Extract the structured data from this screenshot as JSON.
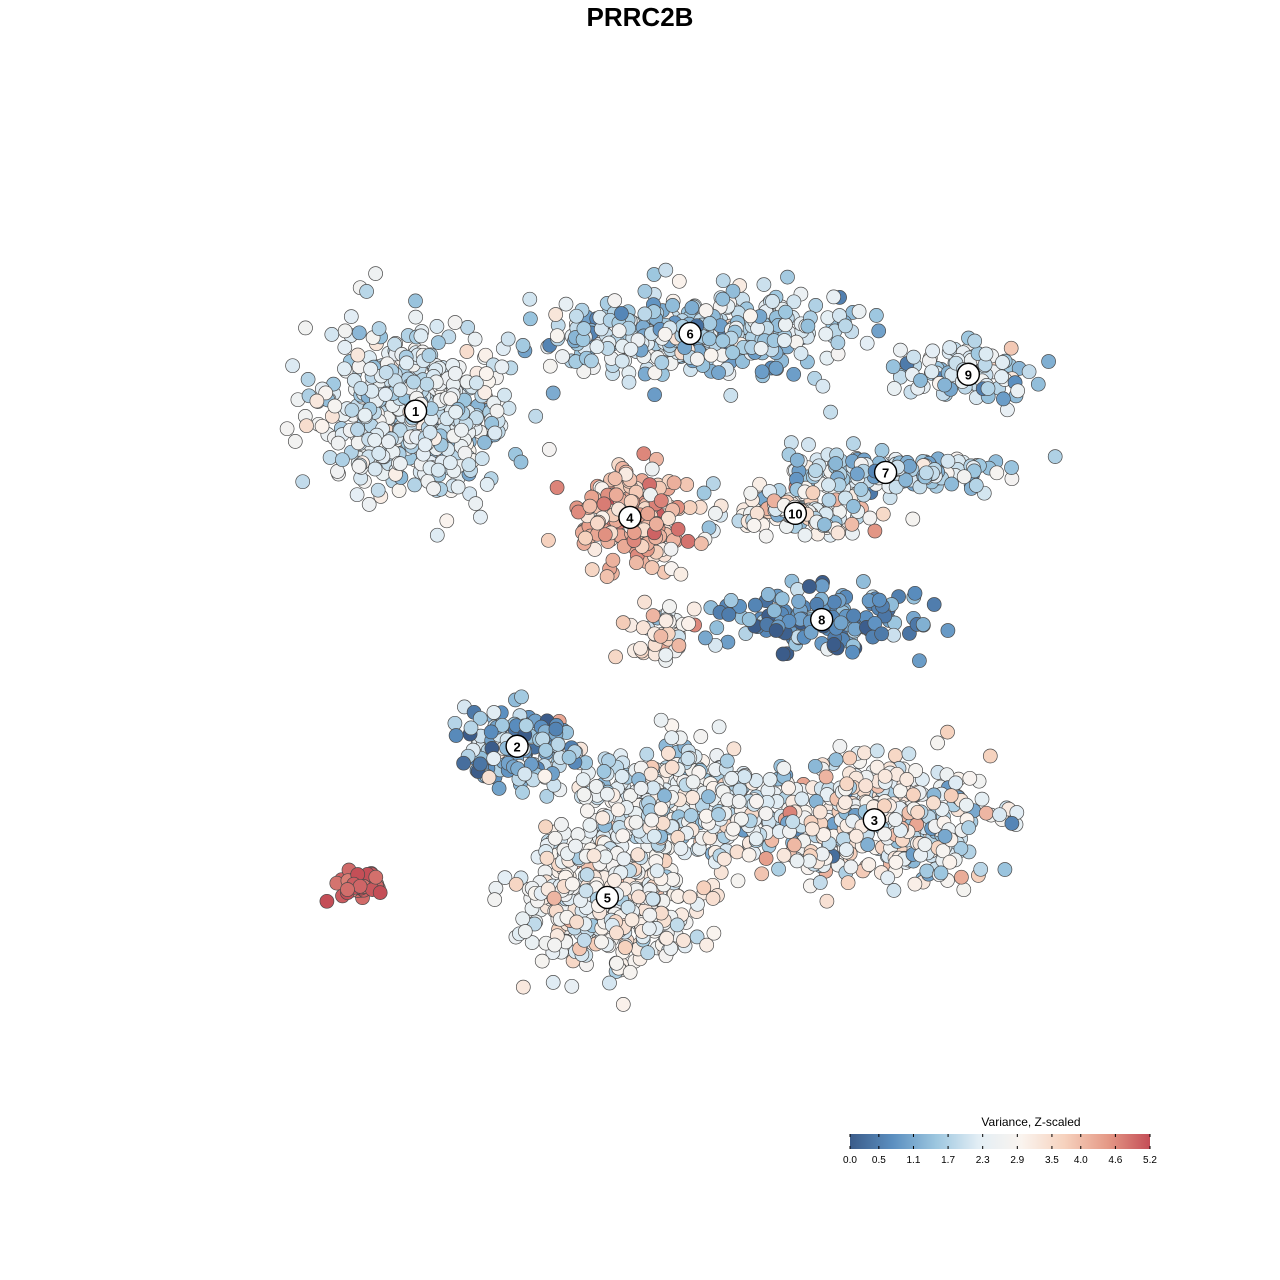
{
  "chart_data": {
    "type": "scatter",
    "title": "PRRC2B",
    "legend": {
      "title": "Variance, Z-scaled",
      "placement": "bottom-right",
      "ticks": [
        "0.0",
        "0.5",
        "1.1",
        "1.7",
        "2.3",
        "2.9",
        "3.5",
        "4.0",
        "4.6",
        "5.2"
      ],
      "range": [
        0.0,
        5.2
      ],
      "colors": [
        "#3b5c8a",
        "#5b8fc0",
        "#9cc6df",
        "#e3eef5",
        "#faf4ef",
        "#f6d2be",
        "#e59a87",
        "#c44e57"
      ]
    },
    "clusters": [
      {
        "label": "1",
        "x": -6.5,
        "y": 6.6,
        "spread_x": 2.2,
        "spread_y": 1.9,
        "n": 520,
        "mean_expression": 2.2,
        "color_sd": 0.5
      },
      {
        "label": "6",
        "x": 0.8,
        "y": 8.5,
        "spread_x": 3.5,
        "spread_y": 0.9,
        "n": 420,
        "mean_expression": 1.9,
        "color_sd": 0.6
      },
      {
        "label": "9",
        "x": 8.2,
        "y": 7.5,
        "spread_x": 1.7,
        "spread_y": 0.6,
        "n": 110,
        "mean_expression": 2.0,
        "color_sd": 0.6
      },
      {
        "label": "7",
        "x": 6.0,
        "y": 5.1,
        "spread_x": 2.6,
        "spread_y": 0.5,
        "n": 210,
        "mean_expression": 1.8,
        "color_sd": 0.6
      },
      {
        "label": "4",
        "x": -0.8,
        "y": 4.0,
        "spread_x": 1.3,
        "spread_y": 1.0,
        "n": 240,
        "mean_expression": 3.9,
        "color_sd": 0.6
      },
      {
        "label": "10",
        "x": 3.6,
        "y": 4.1,
        "spread_x": 1.8,
        "spread_y": 0.6,
        "n": 130,
        "mean_expression": 2.7,
        "color_sd": 0.7
      },
      {
        "label": "8",
        "x": 4.3,
        "y": 1.5,
        "spread_x": 2.4,
        "spread_y": 0.7,
        "n": 160,
        "mean_expression": 0.9,
        "color_sd": 0.6
      },
      {
        "label": "2",
        "x": -3.8,
        "y": -1.6,
        "spread_x": 1.4,
        "spread_y": 0.8,
        "n": 160,
        "mean_expression": 1.3,
        "color_sd": 0.8
      },
      {
        "label": "3",
        "x": 5.7,
        "y": -3.4,
        "spread_x": 2.8,
        "spread_y": 1.3,
        "n": 430,
        "mean_expression": 2.6,
        "color_sd": 0.8
      },
      {
        "label": "5",
        "x": -1.4,
        "y": -5.3,
        "spread_x": 2.0,
        "spread_y": 1.4,
        "n": 470,
        "mean_expression": 2.8,
        "color_sd": 0.5
      },
      {
        "label": "",
        "x": 0.5,
        "y": -3.0,
        "spread_x": 2.4,
        "spread_y": 1.2,
        "n": 380,
        "mean_expression": 2.4,
        "color_sd": 0.6
      },
      {
        "label": "",
        "x": -8.0,
        "y": -5.0,
        "spread_x": 0.6,
        "spread_y": 0.3,
        "n": 45,
        "mean_expression": 5.0,
        "color_sd": 0.25
      },
      {
        "label": "",
        "x": 0.0,
        "y": 1.2,
        "spread_x": 0.9,
        "spread_y": 0.7,
        "n": 40,
        "mean_expression": 3.3,
        "color_sd": 0.7
      }
    ],
    "xlim": [
      -12.5,
      12.5
    ],
    "ylim": [
      -10.5,
      12.5
    ],
    "grid": false
  }
}
